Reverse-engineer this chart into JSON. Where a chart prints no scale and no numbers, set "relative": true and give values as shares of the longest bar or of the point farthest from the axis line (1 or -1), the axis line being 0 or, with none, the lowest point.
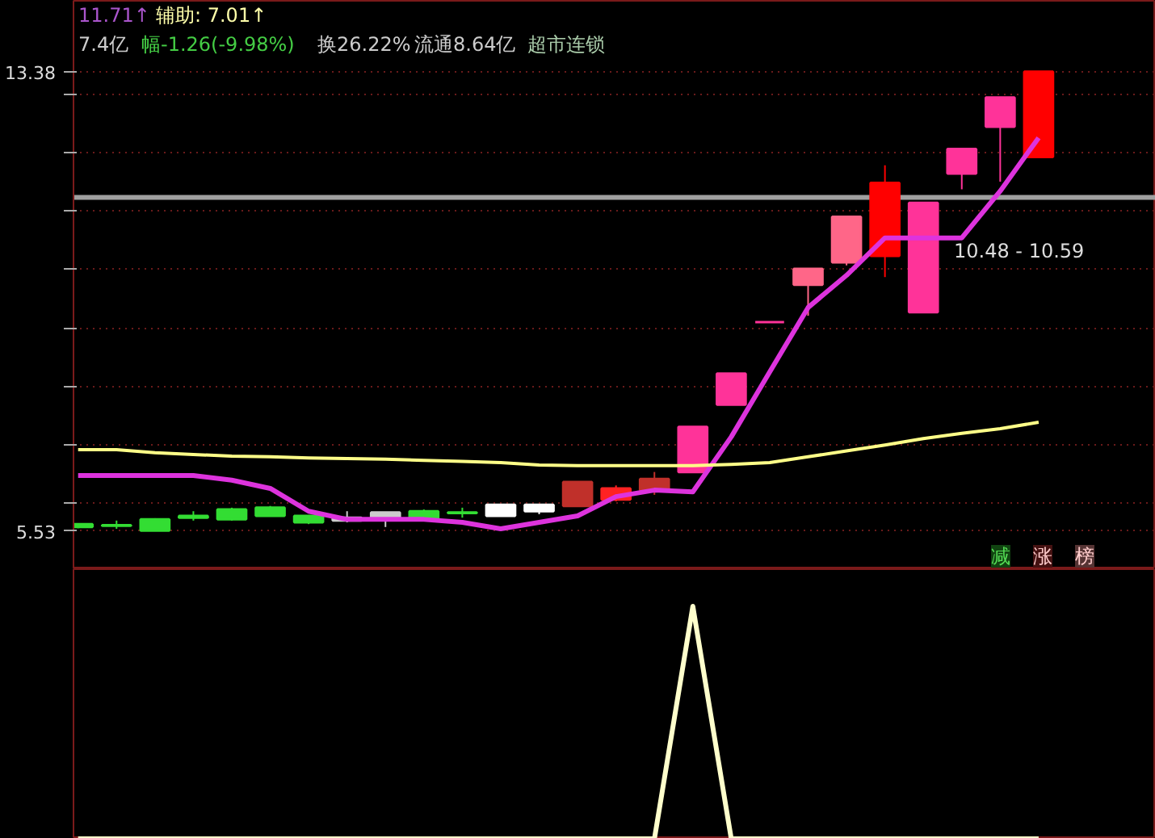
{
  "chart_data": [
    {
      "type": "candlestick",
      "categories": [
        null,
        null,
        null,
        null,
        null,
        null,
        null,
        null,
        null,
        null,
        null,
        null,
        null,
        null,
        null,
        null,
        null,
        null,
        null,
        null,
        null,
        null,
        null,
        null,
        null,
        null
      ],
      "ohlc": [
        [
          5.65,
          5.66,
          5.58,
          5.6
        ],
        [
          5.63,
          5.71,
          5.57,
          5.62
        ],
        [
          5.73,
          5.75,
          5.53,
          5.54
        ],
        [
          5.79,
          5.87,
          5.71,
          5.76
        ],
        [
          5.9,
          5.93,
          5.71,
          5.73
        ],
        [
          5.93,
          5.96,
          5.79,
          5.79
        ],
        [
          5.79,
          5.79,
          5.65,
          5.68
        ],
        [
          5.76,
          5.87,
          5.68,
          5.71
        ],
        [
          5.85,
          5.85,
          5.6,
          5.73
        ],
        [
          5.87,
          5.9,
          5.73,
          5.73
        ],
        [
          5.85,
          5.93,
          5.76,
          5.84
        ],
        [
          5.79,
          5.98,
          5.79,
          5.98
        ],
        [
          5.87,
          5.98,
          5.82,
          5.98
        ],
        [
          5.96,
          6.37,
          5.96,
          6.37
        ],
        [
          6.07,
          6.31,
          6.04,
          6.26
        ],
        [
          6.23,
          6.54,
          6.15,
          6.42
        ],
        [
          6.54,
          7.31,
          6.54,
          7.31
        ],
        [
          7.69,
          8.22,
          7.69,
          8.22
        ],
        [
          9.1,
          9.1,
          9.1,
          9.1
        ],
        [
          9.74,
          10.01,
          9.21,
          10.01
        ],
        [
          10.12,
          10.9,
          10.07,
          10.9
        ],
        [
          10.23,
          11.78,
          9.87,
          11.48
        ],
        [
          9.27,
          11.14,
          9.27,
          11.14
        ],
        [
          11.64,
          12.06,
          11.37,
          12.06
        ],
        [
          12.44,
          12.94,
          11.5,
          12.94
        ],
        [
          11.92,
          13.38,
          11.92,
          13.38
        ]
      ],
      "colors": [
        "#33dd33",
        "#33dd33",
        "#33dd33",
        "#33dd33",
        "#33dd33",
        "#33dd33",
        "#33dd33",
        "#cccccc",
        "#cccccc",
        "#33dd33",
        "#33dd33",
        "#ffffff",
        "#ffffff",
        "#c0302a",
        "#ff2222",
        "#c0302a",
        "#ff3399",
        "#ff3399",
        "#ff3399",
        "#ff6688",
        "#ff6688",
        "#ff0000",
        "#ff3399",
        "#ff3399",
        "#ff3399",
        "#ff0000"
      ],
      "series": [
        {
          "type": "line",
          "color": "#dd33dd",
          "values": [
            6.48,
            6.48,
            6.48,
            6.48,
            6.4,
            6.26,
            5.87,
            5.73,
            5.73,
            5.73,
            5.68,
            5.57,
            5.68,
            5.79,
            6.12,
            6.23,
            6.2,
            7.14,
            8.25,
            9.35,
            9.9,
            10.54,
            10.54,
            10.54,
            11.34,
            12.25
          ]
        },
        {
          "type": "line",
          "color": "#ffff88",
          "values": [
            6.92,
            6.92,
            6.87,
            6.84,
            6.81,
            6.8,
            6.78,
            6.77,
            6.76,
            6.74,
            6.72,
            6.7,
            6.66,
            6.65,
            6.65,
            6.65,
            6.65,
            6.67,
            6.7,
            6.8,
            6.9,
            7.0,
            7.11,
            7.2,
            7.28,
            7.39
          ]
        }
      ],
      "ylim": [
        4.88,
        14.59
      ],
      "yticks": [
        {
          "value": 5.53,
          "label": "5.53"
        },
        {
          "value": 6,
          "label": null
        },
        {
          "value": 7,
          "label": null
        },
        {
          "value": 8,
          "label": null
        },
        {
          "value": 9,
          "label": null
        },
        {
          "value": 10,
          "label": null
        },
        {
          "value": 11,
          "label": null
        },
        {
          "value": 12,
          "label": null
        },
        {
          "value": 13,
          "label": null
        },
        {
          "value": 13.38,
          "label": "13.38"
        }
      ],
      "grid": "y",
      "tick_labels": "y",
      "ref_lines": [
        {
          "axis": "y",
          "value": 11.23,
          "color": "#a0a0a0"
        }
      ],
      "annotations": [
        "11.71↑",
        "辅助: 7.01↑",
        "7.4亿",
        "幅-1.26(-9.98%)",
        "换26.22%",
        "流通8.64亿",
        "超市连锁",
        "减",
        "涨",
        "榜",
        "10.48 - 10.59"
      ]
    },
    {
      "type": "line",
      "relative": true,
      "tick_labels": false,
      "categories": [
        null,
        null,
        null,
        null,
        null,
        null,
        null,
        null,
        null,
        null,
        null,
        null,
        null,
        null,
        null,
        null,
        null,
        null,
        null,
        null,
        null,
        null,
        null,
        null,
        null,
        null
      ],
      "series": [
        {
          "color": "#ffffcc",
          "values": [
            0,
            0,
            0,
            0,
            0,
            0,
            0,
            0,
            0,
            0,
            0,
            0,
            0,
            0,
            0,
            0,
            1,
            0,
            0,
            0,
            0,
            0,
            0,
            0,
            0,
            0
          ]
        }
      ]
    }
  ]
}
